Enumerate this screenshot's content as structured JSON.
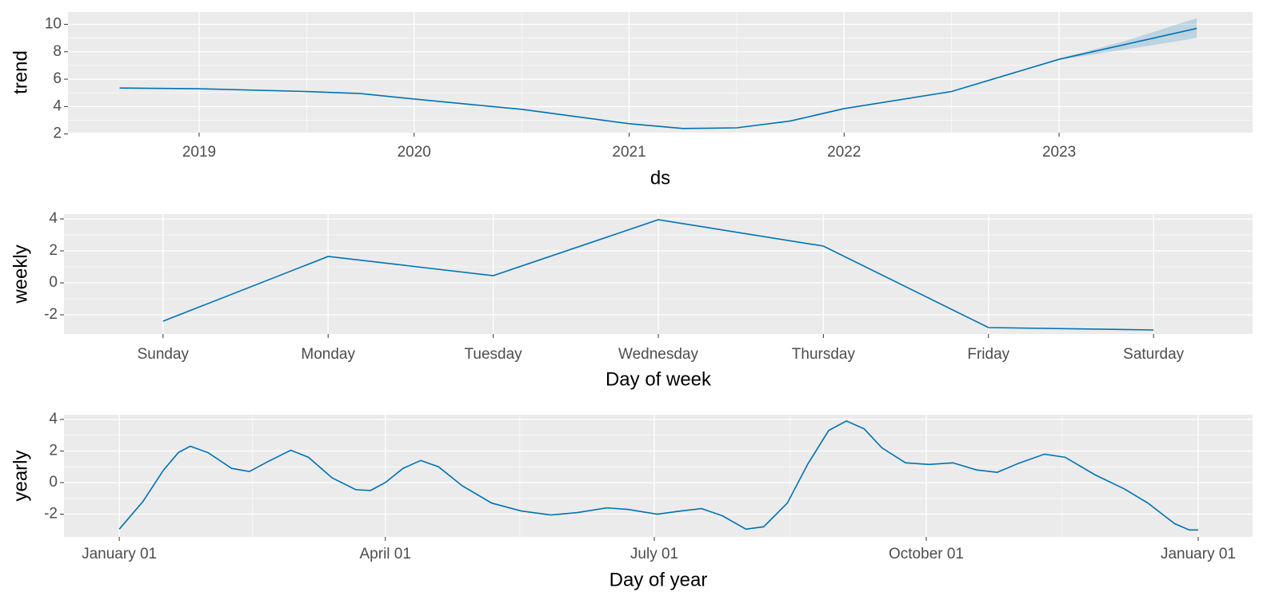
{
  "chart_data": [
    {
      "type": "line",
      "y_label": "trend",
      "x_label": "ds",
      "color": "#0072B2",
      "grid": true,
      "x": [
        2018.63,
        2019.0,
        2019.5,
        2019.75,
        2020.0,
        2020.5,
        2021.0,
        2021.25,
        2021.5,
        2021.75,
        2022.0,
        2022.5,
        2023.0,
        2023.64
      ],
      "values": [
        5.35,
        5.3,
        5.1,
        4.95,
        4.55,
        3.8,
        2.75,
        2.4,
        2.45,
        2.95,
        3.85,
        5.1,
        7.45,
        9.7
      ],
      "band": {
        "color": "#0072B2",
        "x": [
          2023.0,
          2023.3,
          2023.64
        ],
        "lower": [
          7.4,
          8.15,
          9.0
        ],
        "upper": [
          7.5,
          8.75,
          10.45
        ]
      },
      "xlim": [
        2018.39,
        2023.9
      ],
      "xticks": [
        2019,
        2020,
        2021,
        2022,
        2023
      ],
      "ylim": [
        2.1,
        10.9
      ],
      "yticks": [
        2,
        4,
        6,
        8,
        10
      ]
    },
    {
      "type": "line",
      "y_label": "weekly",
      "x_label": "Day of week",
      "color": "#0072B2",
      "grid": true,
      "categories": [
        "Sunday",
        "Monday",
        "Tuesday",
        "Wednesday",
        "Thursday",
        "Friday",
        "Saturday"
      ],
      "values": [
        -2.4,
        1.65,
        0.45,
        3.95,
        2.3,
        -2.8,
        -2.95
      ],
      "ylim": [
        -3.2,
        4.3
      ],
      "yticks": [
        -2,
        0,
        2,
        4
      ]
    },
    {
      "type": "line",
      "y_label": "yearly",
      "x_label": "Day of year",
      "color": "#0072B2",
      "grid": true,
      "x": [
        0,
        8,
        15,
        20,
        24,
        30,
        38,
        44,
        50,
        58,
        64,
        72,
        80,
        85,
        90,
        96,
        102,
        108,
        116,
        126,
        136,
        146,
        155,
        165,
        172,
        182,
        190,
        197,
        204,
        212,
        218,
        226,
        233,
        240,
        246,
        252,
        258,
        266,
        274,
        282,
        290,
        297,
        304,
        313,
        320,
        330,
        340,
        348,
        357,
        362,
        365
      ],
      "values": [
        -2.95,
        -1.2,
        0.8,
        1.9,
        2.3,
        1.9,
        0.9,
        0.7,
        1.3,
        2.05,
        1.6,
        0.3,
        -0.45,
        -0.5,
        0.0,
        0.9,
        1.4,
        1.0,
        -0.2,
        -1.3,
        -1.8,
        -2.05,
        -1.9,
        -1.6,
        -1.7,
        -2.0,
        -1.8,
        -1.65,
        -2.1,
        -2.95,
        -2.8,
        -1.3,
        1.2,
        3.3,
        3.9,
        3.4,
        2.2,
        1.25,
        1.15,
        1.25,
        0.8,
        0.65,
        1.2,
        1.8,
        1.6,
        0.5,
        -0.4,
        -1.3,
        -2.6,
        -3.0,
        -3.0
      ],
      "xlim": [
        -18.7,
        383.4
      ],
      "xticks": [
        {
          "value": 0,
          "label": "January 01"
        },
        {
          "value": 90,
          "label": "April 01"
        },
        {
          "value": 181,
          "label": "July 01"
        },
        {
          "value": 273,
          "label": "October 01"
        },
        {
          "value": 365,
          "label": "January 01"
        }
      ],
      "ylim": [
        -3.44,
        4.3
      ],
      "yticks": [
        -2,
        0,
        2,
        4
      ]
    }
  ]
}
